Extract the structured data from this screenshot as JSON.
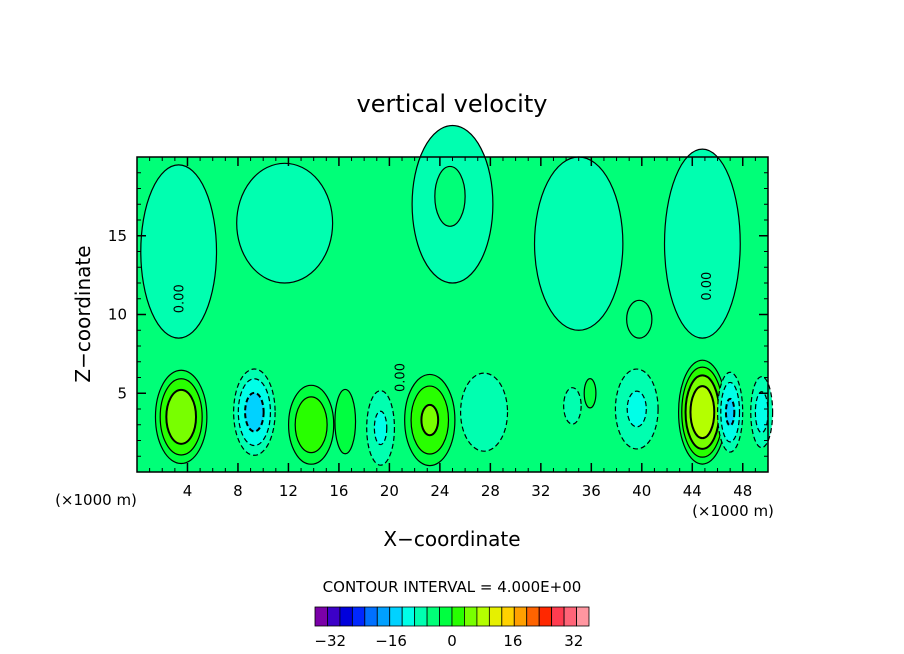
{
  "chart_data": {
    "type": "heatmap",
    "title": "vertical velocity",
    "xlabel": "X−coordinate",
    "ylabel": "Z−coordinate",
    "x_unit_label": "(×1000 m)",
    "z_unit_label": "(×1000 m)",
    "xlim": [
      0,
      50
    ],
    "ylim": [
      0,
      20
    ],
    "x_ticks": [
      4,
      8,
      12,
      16,
      20,
      24,
      28,
      32,
      36,
      40,
      44,
      48
    ],
    "y_ticks": [
      5,
      10,
      15
    ],
    "contour_interval_label": "CONTOUR INTERVAL = 4.000E+00",
    "contour_interval": 4,
    "zero_contour_label": "0.00",
    "colorbar": {
      "min": -36,
      "max": 36,
      "step": 4,
      "tick_values": [
        -32,
        -16,
        0,
        16,
        32
      ],
      "tick_labels": [
        "−32",
        "−16",
        "0",
        "16",
        "32"
      ],
      "colors": [
        "#7a00a8",
        "#3c00c8",
        "#0000dc",
        "#0028ff",
        "#0070ff",
        "#00a0ff",
        "#00d2ff",
        "#00ffe8",
        "#00ffb0",
        "#00ff78",
        "#00ff40",
        "#28ff00",
        "#78ff00",
        "#b4ff00",
        "#e6f000",
        "#ffd200",
        "#ffa000",
        "#ff6400",
        "#ff2800",
        "#ff3c50",
        "#ff6478",
        "#ff96a0"
      ]
    },
    "background_value": 0,
    "cells": [
      {
        "x": 3.5,
        "z": 3.5,
        "rx": 2.2,
        "rz": 3.2,
        "peak": 14
      },
      {
        "x": 9.3,
        "z": 3.8,
        "rx": 1.8,
        "rz": 3.0,
        "peak": -12
      },
      {
        "x": 13.8,
        "z": 3.0,
        "rx": 2.0,
        "rz": 2.8,
        "peak": 10
      },
      {
        "x": 16.5,
        "z": 3.2,
        "rx": 1.0,
        "rz": 2.5,
        "peak": 6
      },
      {
        "x": 19.3,
        "z": 2.8,
        "rx": 1.3,
        "rz": 2.8,
        "peak": -7
      },
      {
        "x": 23.2,
        "z": 3.3,
        "rx": 2.2,
        "rz": 3.2,
        "peak": 11
      },
      {
        "x": 27.5,
        "z": 3.8,
        "rx": 2.4,
        "rz": 3.2,
        "peak": -5
      },
      {
        "x": 34.5,
        "z": 4.2,
        "rx": 1.2,
        "rz": 2.0,
        "peak": -3
      },
      {
        "x": 35.9,
        "z": 5.0,
        "rx": 0.6,
        "rz": 1.2,
        "peak": 5
      },
      {
        "x": 39.6,
        "z": 4.0,
        "rx": 2.0,
        "rz": 3.0,
        "peak": -7
      },
      {
        "x": 44.8,
        "z": 3.8,
        "rx": 2.0,
        "rz": 3.5,
        "peak": 18
      },
      {
        "x": 47.0,
        "z": 3.8,
        "rx": 1.1,
        "rz": 2.8,
        "peak": -11
      },
      {
        "x": 49.5,
        "z": 3.8,
        "rx": 1.0,
        "rz": 2.6,
        "peak": -8
      }
    ],
    "upper_patches": [
      {
        "x": 3.3,
        "z": 14.0,
        "rx": 3.0,
        "rz": 5.5,
        "v": -2
      },
      {
        "x": 11.7,
        "z": 15.8,
        "rx": 3.8,
        "rz": 3.8,
        "v": -1.5
      },
      {
        "x": 25.0,
        "z": 17.0,
        "rx": 3.2,
        "rz": 5.0,
        "v": -2
      },
      {
        "x": 35.0,
        "z": 14.5,
        "rx": 3.5,
        "rz": 5.5,
        "v": -2
      },
      {
        "x": 44.8,
        "z": 14.5,
        "rx": 3.0,
        "rz": 6.0,
        "v": -2
      },
      {
        "x": 24.8,
        "z": 17.5,
        "rx": 1.2,
        "rz": 1.9,
        "v": 1.2
      },
      {
        "x": 39.8,
        "z": 9.7,
        "rx": 1.0,
        "rz": 1.2,
        "v": 1.2
      }
    ]
  }
}
